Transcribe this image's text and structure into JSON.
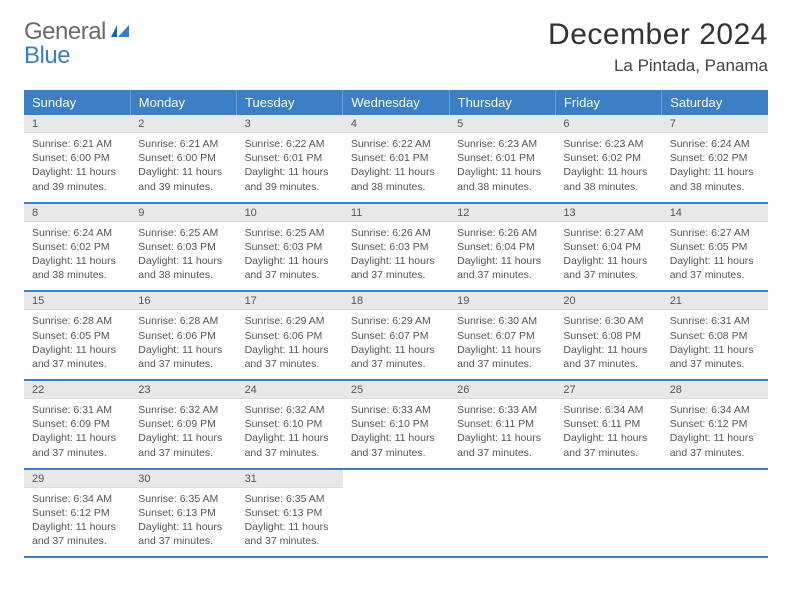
{
  "brand": {
    "part1": "General",
    "part2": "Blue"
  },
  "title": "December 2024",
  "location": "La Pintada, Panama",
  "colors": {
    "header_bg": "#3b7fc4",
    "header_text": "#ffffff",
    "daynum_bg": "#e8e8e8",
    "body_text": "#555555",
    "rule": "#3b7fc4"
  },
  "typography": {
    "title_fontsize": 30,
    "location_fontsize": 17,
    "dayheader_fontsize": 13,
    "daynum_fontsize": 11,
    "body_fontsize": 10.5
  },
  "day_headers": [
    "Sunday",
    "Monday",
    "Tuesday",
    "Wednesday",
    "Thursday",
    "Friday",
    "Saturday"
  ],
  "days": [
    {
      "n": "1",
      "sr": "6:21 AM",
      "ss": "6:00 PM",
      "dl": "11 hours and 39 minutes."
    },
    {
      "n": "2",
      "sr": "6:21 AM",
      "ss": "6:00 PM",
      "dl": "11 hours and 39 minutes."
    },
    {
      "n": "3",
      "sr": "6:22 AM",
      "ss": "6:01 PM",
      "dl": "11 hours and 39 minutes."
    },
    {
      "n": "4",
      "sr": "6:22 AM",
      "ss": "6:01 PM",
      "dl": "11 hours and 38 minutes."
    },
    {
      "n": "5",
      "sr": "6:23 AM",
      "ss": "6:01 PM",
      "dl": "11 hours and 38 minutes."
    },
    {
      "n": "6",
      "sr": "6:23 AM",
      "ss": "6:02 PM",
      "dl": "11 hours and 38 minutes."
    },
    {
      "n": "7",
      "sr": "6:24 AM",
      "ss": "6:02 PM",
      "dl": "11 hours and 38 minutes."
    },
    {
      "n": "8",
      "sr": "6:24 AM",
      "ss": "6:02 PM",
      "dl": "11 hours and 38 minutes."
    },
    {
      "n": "9",
      "sr": "6:25 AM",
      "ss": "6:03 PM",
      "dl": "11 hours and 38 minutes."
    },
    {
      "n": "10",
      "sr": "6:25 AM",
      "ss": "6:03 PM",
      "dl": "11 hours and 37 minutes."
    },
    {
      "n": "11",
      "sr": "6:26 AM",
      "ss": "6:03 PM",
      "dl": "11 hours and 37 minutes."
    },
    {
      "n": "12",
      "sr": "6:26 AM",
      "ss": "6:04 PM",
      "dl": "11 hours and 37 minutes."
    },
    {
      "n": "13",
      "sr": "6:27 AM",
      "ss": "6:04 PM",
      "dl": "11 hours and 37 minutes."
    },
    {
      "n": "14",
      "sr": "6:27 AM",
      "ss": "6:05 PM",
      "dl": "11 hours and 37 minutes."
    },
    {
      "n": "15",
      "sr": "6:28 AM",
      "ss": "6:05 PM",
      "dl": "11 hours and 37 minutes."
    },
    {
      "n": "16",
      "sr": "6:28 AM",
      "ss": "6:06 PM",
      "dl": "11 hours and 37 minutes."
    },
    {
      "n": "17",
      "sr": "6:29 AM",
      "ss": "6:06 PM",
      "dl": "11 hours and 37 minutes."
    },
    {
      "n": "18",
      "sr": "6:29 AM",
      "ss": "6:07 PM",
      "dl": "11 hours and 37 minutes."
    },
    {
      "n": "19",
      "sr": "6:30 AM",
      "ss": "6:07 PM",
      "dl": "11 hours and 37 minutes."
    },
    {
      "n": "20",
      "sr": "6:30 AM",
      "ss": "6:08 PM",
      "dl": "11 hours and 37 minutes."
    },
    {
      "n": "21",
      "sr": "6:31 AM",
      "ss": "6:08 PM",
      "dl": "11 hours and 37 minutes."
    },
    {
      "n": "22",
      "sr": "6:31 AM",
      "ss": "6:09 PM",
      "dl": "11 hours and 37 minutes."
    },
    {
      "n": "23",
      "sr": "6:32 AM",
      "ss": "6:09 PM",
      "dl": "11 hours and 37 minutes."
    },
    {
      "n": "24",
      "sr": "6:32 AM",
      "ss": "6:10 PM",
      "dl": "11 hours and 37 minutes."
    },
    {
      "n": "25",
      "sr": "6:33 AM",
      "ss": "6:10 PM",
      "dl": "11 hours and 37 minutes."
    },
    {
      "n": "26",
      "sr": "6:33 AM",
      "ss": "6:11 PM",
      "dl": "11 hours and 37 minutes."
    },
    {
      "n": "27",
      "sr": "6:34 AM",
      "ss": "6:11 PM",
      "dl": "11 hours and 37 minutes."
    },
    {
      "n": "28",
      "sr": "6:34 AM",
      "ss": "6:12 PM",
      "dl": "11 hours and 37 minutes."
    },
    {
      "n": "29",
      "sr": "6:34 AM",
      "ss": "6:12 PM",
      "dl": "11 hours and 37 minutes."
    },
    {
      "n": "30",
      "sr": "6:35 AM",
      "ss": "6:13 PM",
      "dl": "11 hours and 37 minutes."
    },
    {
      "n": "31",
      "sr": "6:35 AM",
      "ss": "6:13 PM",
      "dl": "11 hours and 37 minutes."
    }
  ],
  "labels": {
    "sunrise": "Sunrise:",
    "sunset": "Sunset:",
    "daylight": "Daylight:"
  }
}
